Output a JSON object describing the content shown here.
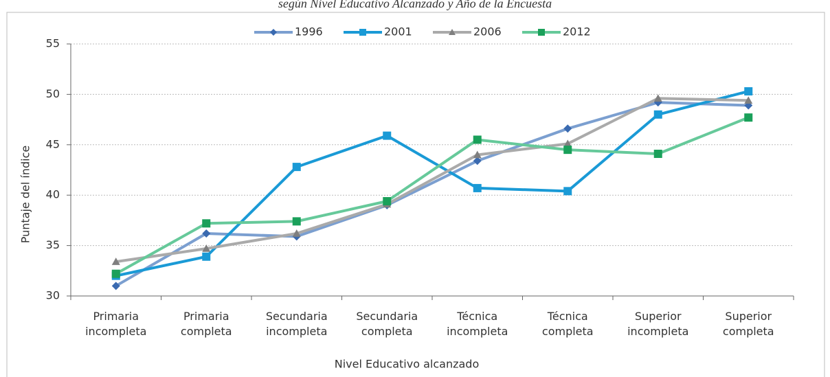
{
  "chart_data": {
    "type": "line",
    "title": "según Nivel Educativo Alcanzado y Año de la Encuesta",
    "categories": [
      "Primaria incompleta",
      "Primaria completa",
      "Secundaria incompleta",
      "Secundaria completa",
      "Técnica incompleta",
      "Técnica completa",
      "Superior incompleta",
      "Superior completa"
    ],
    "series": [
      {
        "name": "1996",
        "color": "#7b9fd0",
        "marker_color": "#3a6ab0",
        "marker": "diamond",
        "values": [
          31.0,
          36.2,
          35.9,
          39.0,
          43.4,
          46.6,
          49.2,
          48.9
        ]
      },
      {
        "name": "2001",
        "color": "#1a9ad6",
        "marker_color": "#1a9ad6",
        "marker": "square",
        "values": [
          32.0,
          33.9,
          42.8,
          45.9,
          40.7,
          40.4,
          48.0,
          50.3
        ]
      },
      {
        "name": "2006",
        "color": "#aaaaaa",
        "marker_color": "#7f7f7f",
        "marker": "triangle",
        "values": [
          33.4,
          34.7,
          36.2,
          39.1,
          44.0,
          45.1,
          49.6,
          49.4
        ]
      },
      {
        "name": "2012",
        "color": "#66c99a",
        "marker_color": "#1aa05a",
        "marker": "square",
        "values": [
          32.2,
          37.2,
          37.4,
          39.4,
          45.5,
          44.5,
          44.1,
          47.7
        ]
      }
    ],
    "ylim": [
      30,
      55
    ],
    "yticks": [
      30,
      35,
      40,
      45,
      50,
      55
    ],
    "grid": true,
    "ylabel": "Puntaje del índice",
    "xlabel": "Nivel Educativo alcanzado",
    "legend": "top"
  }
}
